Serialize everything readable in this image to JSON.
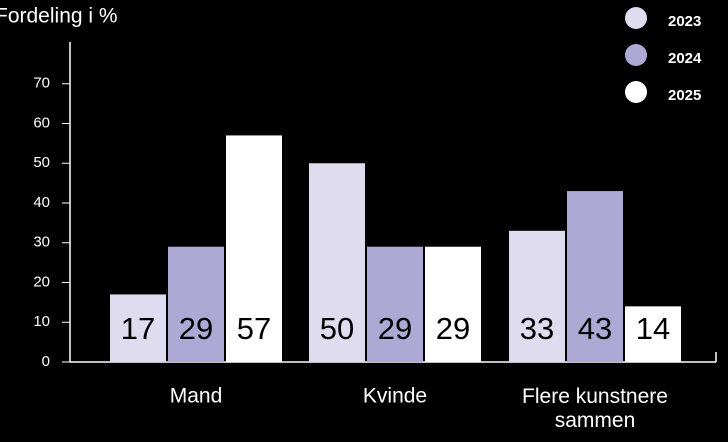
{
  "chart_data": {
    "type": "bar",
    "title": "Fordeling i %",
    "categories": [
      "Mand",
      "Kvinde",
      "Flere kunstnere sammen"
    ],
    "series": [
      {
        "name": "2023",
        "color": "#e0dcf0",
        "values": [
          17,
          50,
          33
        ]
      },
      {
        "name": "2024",
        "color": "#ada8d4",
        "values": [
          29,
          29,
          43
        ]
      },
      {
        "name": "2025",
        "color": "#ffffff",
        "values": [
          57,
          29,
          14
        ]
      }
    ],
    "ylim": [
      0,
      80
    ],
    "yticks": [
      0,
      10,
      20,
      30,
      40,
      50,
      60,
      70
    ],
    "grid": false,
    "legend": "top-right"
  }
}
